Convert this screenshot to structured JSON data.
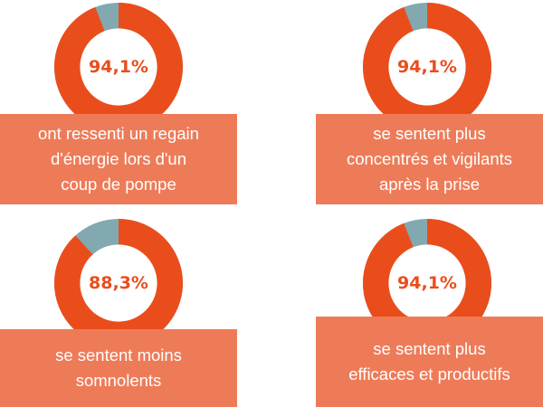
{
  "colors": {
    "main": "#EA4D1C",
    "rest": "#82A9AF",
    "caption_bg": "#EE7B58",
    "hole": "#ffffff"
  },
  "chart_data": [
    {
      "type": "pie",
      "value": 94.1,
      "label": "94,1%",
      "caption": [
        "ont ressenti un regain",
        "d'énergie lors d'un",
        "coup de pompe"
      ]
    },
    {
      "type": "pie",
      "value": 94.1,
      "label": "94,1%",
      "caption": [
        "se sentent plus",
        "concentrés et vigilants",
        "après la prise"
      ]
    },
    {
      "type": "pie",
      "value": 88.3,
      "label": "88,3%",
      "caption": [
        "se sentent moins",
        "somnolents"
      ]
    },
    {
      "type": "pie",
      "value": 94.1,
      "label": "94,1%",
      "caption": [
        "se sentent plus",
        "efficaces et productifs"
      ]
    }
  ]
}
